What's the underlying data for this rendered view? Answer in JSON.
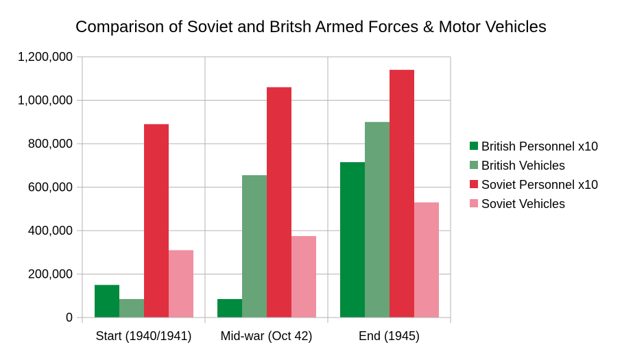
{
  "chart_data": {
    "type": "bar",
    "title": "Comparison of Soviet and Britsh Armed Forces & Motor Vehicles",
    "xlabel": "",
    "ylabel": "",
    "categories": [
      "Start (1940/1941)",
      "Mid-war (Oct 42)",
      "End (1945)"
    ],
    "series": [
      {
        "name": "British Personnel x10",
        "color": "#008a3e",
        "values": [
          150000,
          85000,
          715000
        ]
      },
      {
        "name": "British Vehicles",
        "color": "#67a477",
        "values": [
          85000,
          655000,
          900000
        ]
      },
      {
        "name": "Soviet Personnel x10",
        "color": "#e0303f",
        "values": [
          890000,
          1060000,
          1140000
        ]
      },
      {
        "name": "Soviet Vehicles",
        "color": "#f08f9f",
        "values": [
          310000,
          375000,
          530000
        ]
      }
    ],
    "ylim": [
      0,
      1200000
    ],
    "yticks": [
      0,
      200000,
      400000,
      600000,
      800000,
      1000000,
      1200000
    ],
    "ytick_labels": [
      "0",
      "200,000",
      "400,000",
      "600,000",
      "800,000",
      "1,000,000",
      "1,200,000"
    ],
    "grid": true,
    "legend_position": "right"
  }
}
